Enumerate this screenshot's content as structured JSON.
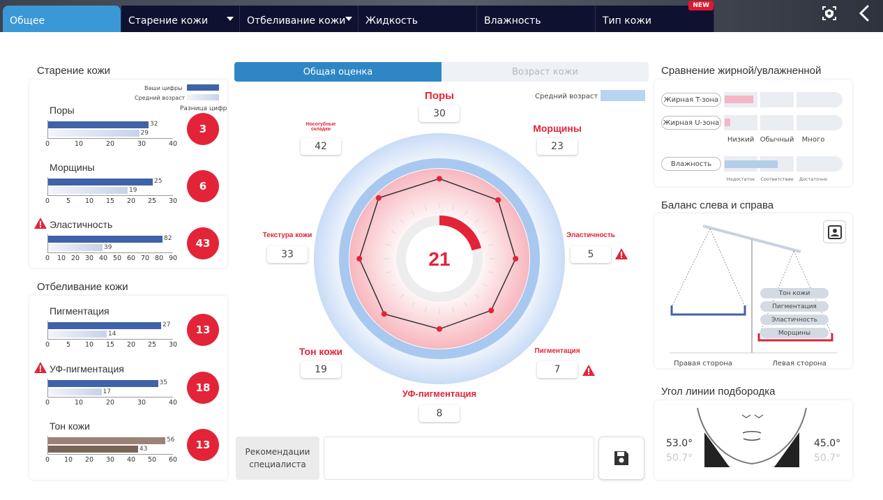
{
  "tabs": [
    {
      "label": "Общее",
      "dropdown": false
    },
    {
      "label": "Старение кожи",
      "dropdown": true
    },
    {
      "label": "Отбеливание кожи",
      "dropdown": true
    },
    {
      "label": "Жидкость",
      "dropdown": false
    },
    {
      "label": "Влажность",
      "dropdown": false
    },
    {
      "label": "Тип кожи",
      "dropdown": false,
      "badge": "NEW"
    }
  ],
  "aging": {
    "title": "Старение кожи",
    "legend_yours": "Ваши цифры",
    "legend_avg": "Средний возраст",
    "diff_header": "Разница цифр",
    "metrics": [
      {
        "label": "Поры",
        "yours": 32,
        "avg": 29,
        "diff": "3",
        "ticks": [
          0,
          10,
          20,
          30,
          40
        ],
        "max": 40,
        "warn": false
      },
      {
        "label": "Морщины",
        "yours": 25,
        "avg": 19,
        "diff": "6",
        "ticks": [
          0,
          5,
          10,
          15,
          20,
          25,
          30
        ],
        "max": 30,
        "warn": false
      },
      {
        "label": "Эластичность",
        "yours": 82,
        "avg": 39,
        "diff": "43",
        "ticks": [
          0,
          10,
          20,
          30,
          40,
          50,
          60,
          70,
          80,
          90
        ],
        "max": 90,
        "warn": true
      }
    ]
  },
  "whitening": {
    "title": "Отбеливание кожи",
    "metrics": [
      {
        "label": "Пигментация",
        "yours": 27,
        "avg": 14,
        "diff": "13",
        "ticks": [
          0,
          5,
          10,
          15,
          20,
          25,
          30
        ],
        "max": 30,
        "warn": false
      },
      {
        "label": "УФ-пигментация",
        "yours": 35,
        "avg": 17,
        "diff": "18",
        "ticks": [
          0,
          10,
          20,
          30,
          40
        ],
        "max": 40,
        "warn": true
      },
      {
        "label": "Тон кожи",
        "yours": 56,
        "avg": 43,
        "diff": "13",
        "ticks": [
          0,
          10,
          20,
          30,
          40,
          50,
          60
        ],
        "max": 60,
        "warn": false,
        "tone": true
      }
    ]
  },
  "center": {
    "tab_active": "Общая оценка",
    "tab_inactive": "Возраст кожи",
    "avg_legend": "Средний возраст",
    "score": "21",
    "radar": [
      {
        "label": "Поры",
        "value": "30",
        "r": 0.82
      },
      {
        "label": "Морщины",
        "value": "23",
        "r": 0.85
      },
      {
        "label": "Эластичность",
        "value": "5",
        "r": 0.78
      },
      {
        "label": "Пигментация",
        "value": "7",
        "r": 0.75
      },
      {
        "label": "УФ-пигментация",
        "value": "8",
        "r": 0.72
      },
      {
        "label": "Тон кожи",
        "value": "19",
        "r": 0.8
      },
      {
        "label": "Текстура кожи",
        "value": "33",
        "r": 0.82
      },
      {
        "label": "Носогубные складки",
        "value": "42",
        "r": 0.88
      }
    ],
    "rec_label": "Рекомендации специалиста"
  },
  "oily": {
    "title": "Сравнение жирной/увлажненной",
    "rows": [
      {
        "label": "Жирная T-зона",
        "level": 0.9
      },
      {
        "label": "Жирная U-зона",
        "level": 0.17
      }
    ],
    "levels": [
      "Низкий",
      "Обычный",
      "Много"
    ],
    "moisture_label": "Влажность",
    "moisture_level": 0.95,
    "moisture_levels": [
      "Недостаток",
      "Соответствие",
      "Достаточно"
    ]
  },
  "balance": {
    "title": "Баланс слева и справа",
    "items": [
      "Тон кожи",
      "Пигментация",
      "Эластичность",
      "Морщины"
    ],
    "right_side": "Правая сторона",
    "left_side": "Левая сторона"
  },
  "chin": {
    "title": "Угол линии подбородка",
    "right_angle": "53.0°",
    "right_avg": "50.7°",
    "left_angle": "45.0°",
    "left_avg": "50.7°"
  }
}
